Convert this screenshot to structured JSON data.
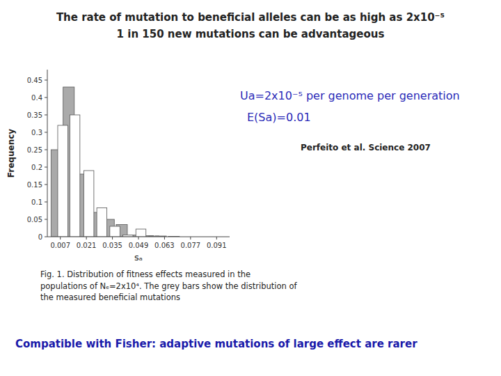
{
  "chart_data": {
    "type": "bar",
    "title": "The rate of mutation to beneficial alleles can be as high as 2x10⁻⁵",
    "subtitle": "1 in 150 new mutations can be advantageous",
    "x_label": "sₐ",
    "y_label": "Frequency",
    "x": [
      0.005,
      0.0115,
      0.019,
      0.026,
      0.033,
      0.04,
      0.047,
      0.054,
      0.061,
      0.068,
      0.075,
      0.082,
      0.089
    ],
    "series": [
      {
        "color": "#aaaaaa",
        "values": [
          0.25,
          0.43,
          0.18,
          0.07,
          0.05,
          0.035,
          0.005,
          0.003,
          0.002,
          0.001,
          0.0,
          0.0,
          0.0
        ]
      },
      {
        "color": "#ffffff",
        "values": [
          0.32,
          0.35,
          0.19,
          0.083,
          0.03,
          0.005,
          0.022,
          0.002,
          0.0,
          0.0,
          0.0,
          0.0,
          0.0
        ]
      }
    ],
    "xlim": [
      0.0,
      0.098
    ],
    "ylim": [
      0,
      0.48
    ],
    "xticks": [
      0.007,
      0.021,
      0.035,
      0.049,
      0.063,
      0.077,
      0.091
    ],
    "yticks": [
      0,
      0.05,
      0.1,
      0.15,
      0.2,
      0.25,
      0.3,
      0.35,
      0.4,
      0.45
    ],
    "grid": false,
    "annotations": [
      "Ua=2x10⁻⁵ per genome per generation",
      "E(Sa)=0.01",
      "Perfeito et al. Science 2007",
      "Fig. 1.  Distribution of fitness effects measured in the\npopulations of Nₑ=2x10⁴. The grey bars show the distribution of\nthe measured beneficial mutations",
      "Compatible with Fisher: adaptive mutations of large effect are rarer"
    ]
  }
}
